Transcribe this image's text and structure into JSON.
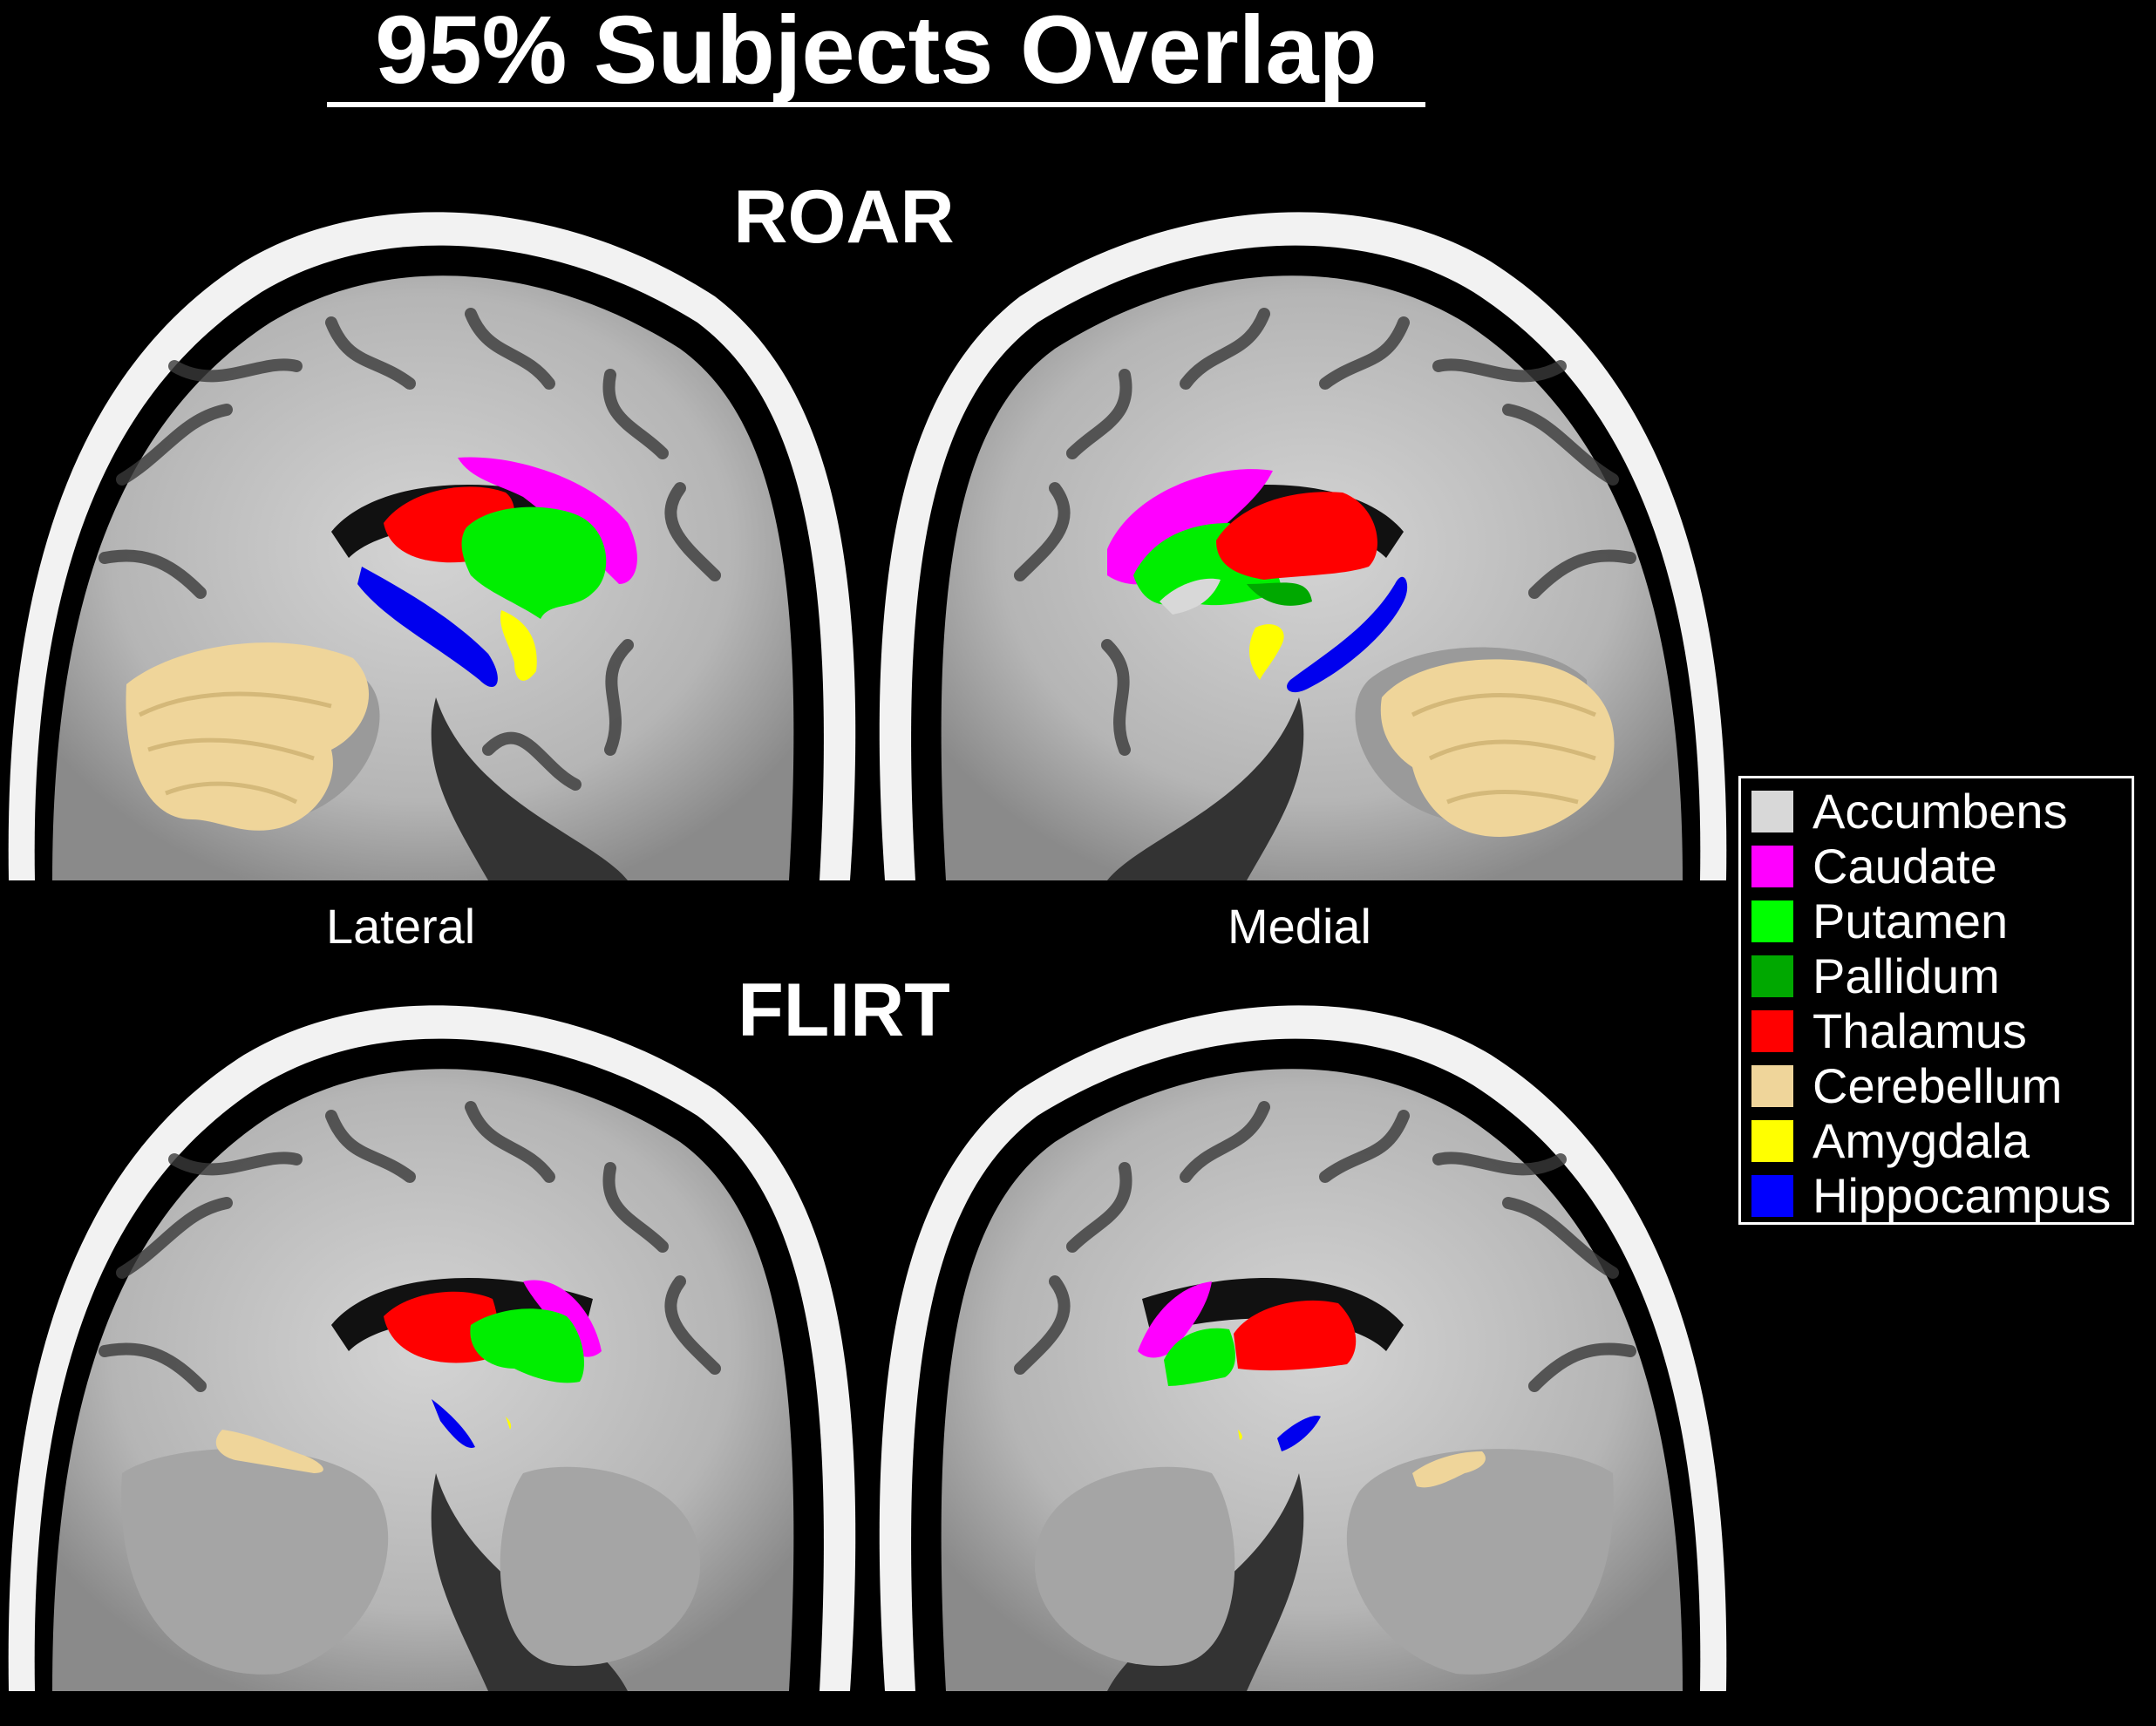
{
  "title": "95% Subjects Overlap",
  "sections": {
    "top": "ROAR",
    "bottom": "FLIRT"
  },
  "views": {
    "left": "Lateral",
    "right": "Medial"
  },
  "legend": [
    {
      "label": "Accumbens",
      "color": "#d8d8d8"
    },
    {
      "label": "Caudate",
      "color": "#ff00ff"
    },
    {
      "label": "Putamen",
      "color": "#00ff00"
    },
    {
      "label": "Pallidum",
      "color": "#00a800"
    },
    {
      "label": "Thalamus",
      "color": "#ff0000"
    },
    {
      "label": "Cerebellum",
      "color": "#efd59a"
    },
    {
      "label": "Amygdala",
      "color": "#ffff00"
    },
    {
      "label": "Hippocampus",
      "color": "#0000ff"
    }
  ]
}
